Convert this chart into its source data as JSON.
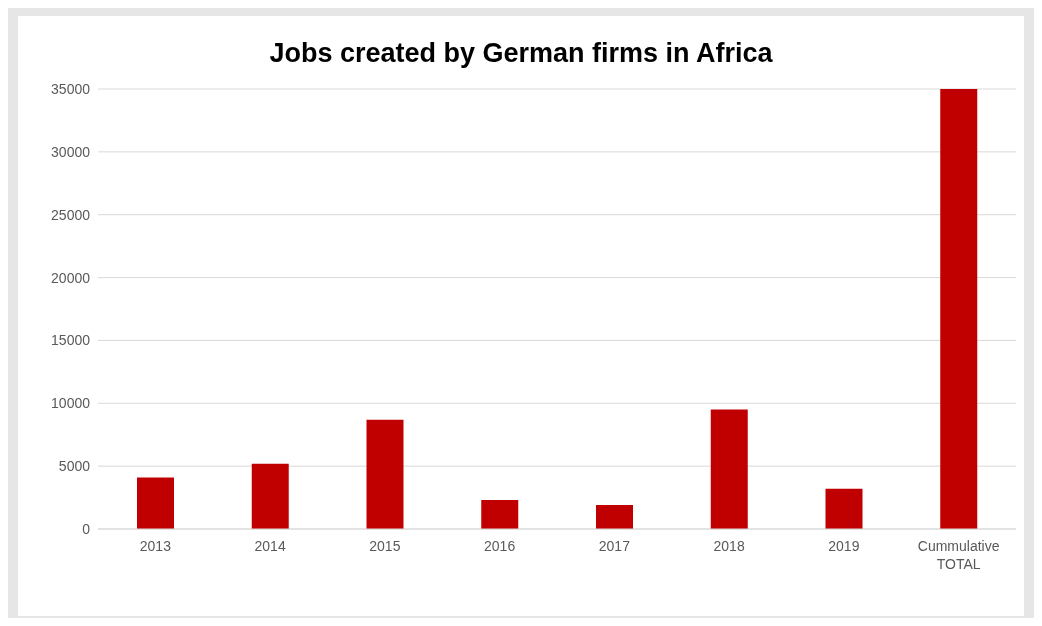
{
  "chart_data": {
    "type": "bar",
    "title": "Jobs created by German firms in Africa",
    "categories": [
      "2013",
      "2014",
      "2015",
      "2016",
      "2017",
      "2018",
      "2019",
      "Cummulative TOTAL"
    ],
    "values": [
      4100,
      5200,
      8700,
      2300,
      1900,
      9500,
      3200,
      35000
    ],
    "color": "#c00000",
    "ylim": [
      0,
      35000
    ],
    "yticks": [
      0,
      5000,
      10000,
      15000,
      20000,
      25000,
      30000,
      35000
    ],
    "grid": "y",
    "legend": false
  }
}
